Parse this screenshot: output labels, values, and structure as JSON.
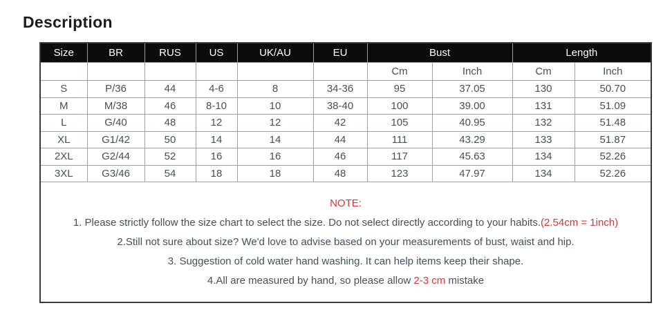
{
  "title": "Description",
  "colors": {
    "accent_red": "#d93535",
    "header_bg": "#0c0c0c",
    "header_text": "#ffffff",
    "body_text": "#454f59",
    "grid_line": "#989fa5",
    "outer_border": "#3a3a3a"
  },
  "chart_data": {
    "type": "table",
    "title": "Size chart",
    "columns": [
      "Size",
      "BR",
      "RUS",
      "US",
      "UK/AU",
      "EU",
      "Bust Cm",
      "Bust Inch",
      "Length Cm",
      "Length Inch"
    ],
    "rows": [
      [
        "S",
        "P/36",
        "44",
        "4-6",
        "8",
        "34-36",
        "95",
        "37.05",
        "130",
        "50.70"
      ],
      [
        "M",
        "M/38",
        "46",
        "8-10",
        "10",
        "38-40",
        "100",
        "39.00",
        "131",
        "51.09"
      ],
      [
        "L",
        "G/40",
        "48",
        "12",
        "12",
        "42",
        "105",
        "40.95",
        "132",
        "51.48"
      ],
      [
        "XL",
        "G1/42",
        "50",
        "14",
        "14",
        "44",
        "111",
        "43.29",
        "133",
        "51.87"
      ],
      [
        "2XL",
        "G2/44",
        "52",
        "16",
        "16",
        "46",
        "117",
        "45.63",
        "134",
        "52.26"
      ],
      [
        "3XL",
        "G3/46",
        "54",
        "18",
        "18",
        "48",
        "123",
        "47.97",
        "134",
        "52.26"
      ]
    ]
  },
  "table": {
    "columns": [
      "Size",
      "BR",
      "RUS",
      "US",
      "UK/AU",
      "EU"
    ],
    "groups": [
      {
        "label": "Bust",
        "subcolumns": [
          "Cm",
          "Inch"
        ]
      },
      {
        "label": "Length",
        "subcolumns": [
          "Cm",
          "Inch"
        ]
      }
    ],
    "rows": [
      [
        "S",
        "P/36",
        "44",
        "4-6",
        "8",
        "34-36",
        "95",
        "37.05",
        "130",
        "50.70"
      ],
      [
        "M",
        "M/38",
        "46",
        "8-10",
        "10",
        "38-40",
        "100",
        "39.00",
        "131",
        "51.09"
      ],
      [
        "L",
        "G/40",
        "48",
        "12",
        "12",
        "42",
        "105",
        "40.95",
        "132",
        "51.48"
      ],
      [
        "XL",
        "G1/42",
        "50",
        "14",
        "14",
        "44",
        "111",
        "43.29",
        "133",
        "51.87"
      ],
      [
        "2XL",
        "G2/44",
        "52",
        "16",
        "16",
        "46",
        "117",
        "45.63",
        "134",
        "52.26"
      ],
      [
        "3XL",
        "G3/46",
        "54",
        "18",
        "18",
        "48",
        "123",
        "47.97",
        "134",
        "52.26"
      ]
    ]
  },
  "note": {
    "title": "NOTE:",
    "lines": [
      {
        "segments": [
          {
            "text": "1. Please strictly follow the size chart to select the size. Do not select directly according to your habits.",
            "color": "default"
          },
          {
            "text": "(2.54cm = 1inch)",
            "color": "red"
          }
        ]
      },
      {
        "segments": [
          {
            "text": "2.Still not sure about size? We'd love to advise based on your measurements of bust, waist and hip.",
            "color": "default"
          }
        ]
      },
      {
        "segments": [
          {
            "text": "3. Suggestion of cold water hand washing. It can help items keep their shape.",
            "color": "default"
          }
        ]
      },
      {
        "segments": [
          {
            "text": "4.All are measured by hand, so please allow ",
            "color": "default"
          },
          {
            "text": "2-3 cm",
            "color": "red"
          },
          {
            "text": " mistake",
            "color": "default"
          }
        ]
      }
    ]
  }
}
